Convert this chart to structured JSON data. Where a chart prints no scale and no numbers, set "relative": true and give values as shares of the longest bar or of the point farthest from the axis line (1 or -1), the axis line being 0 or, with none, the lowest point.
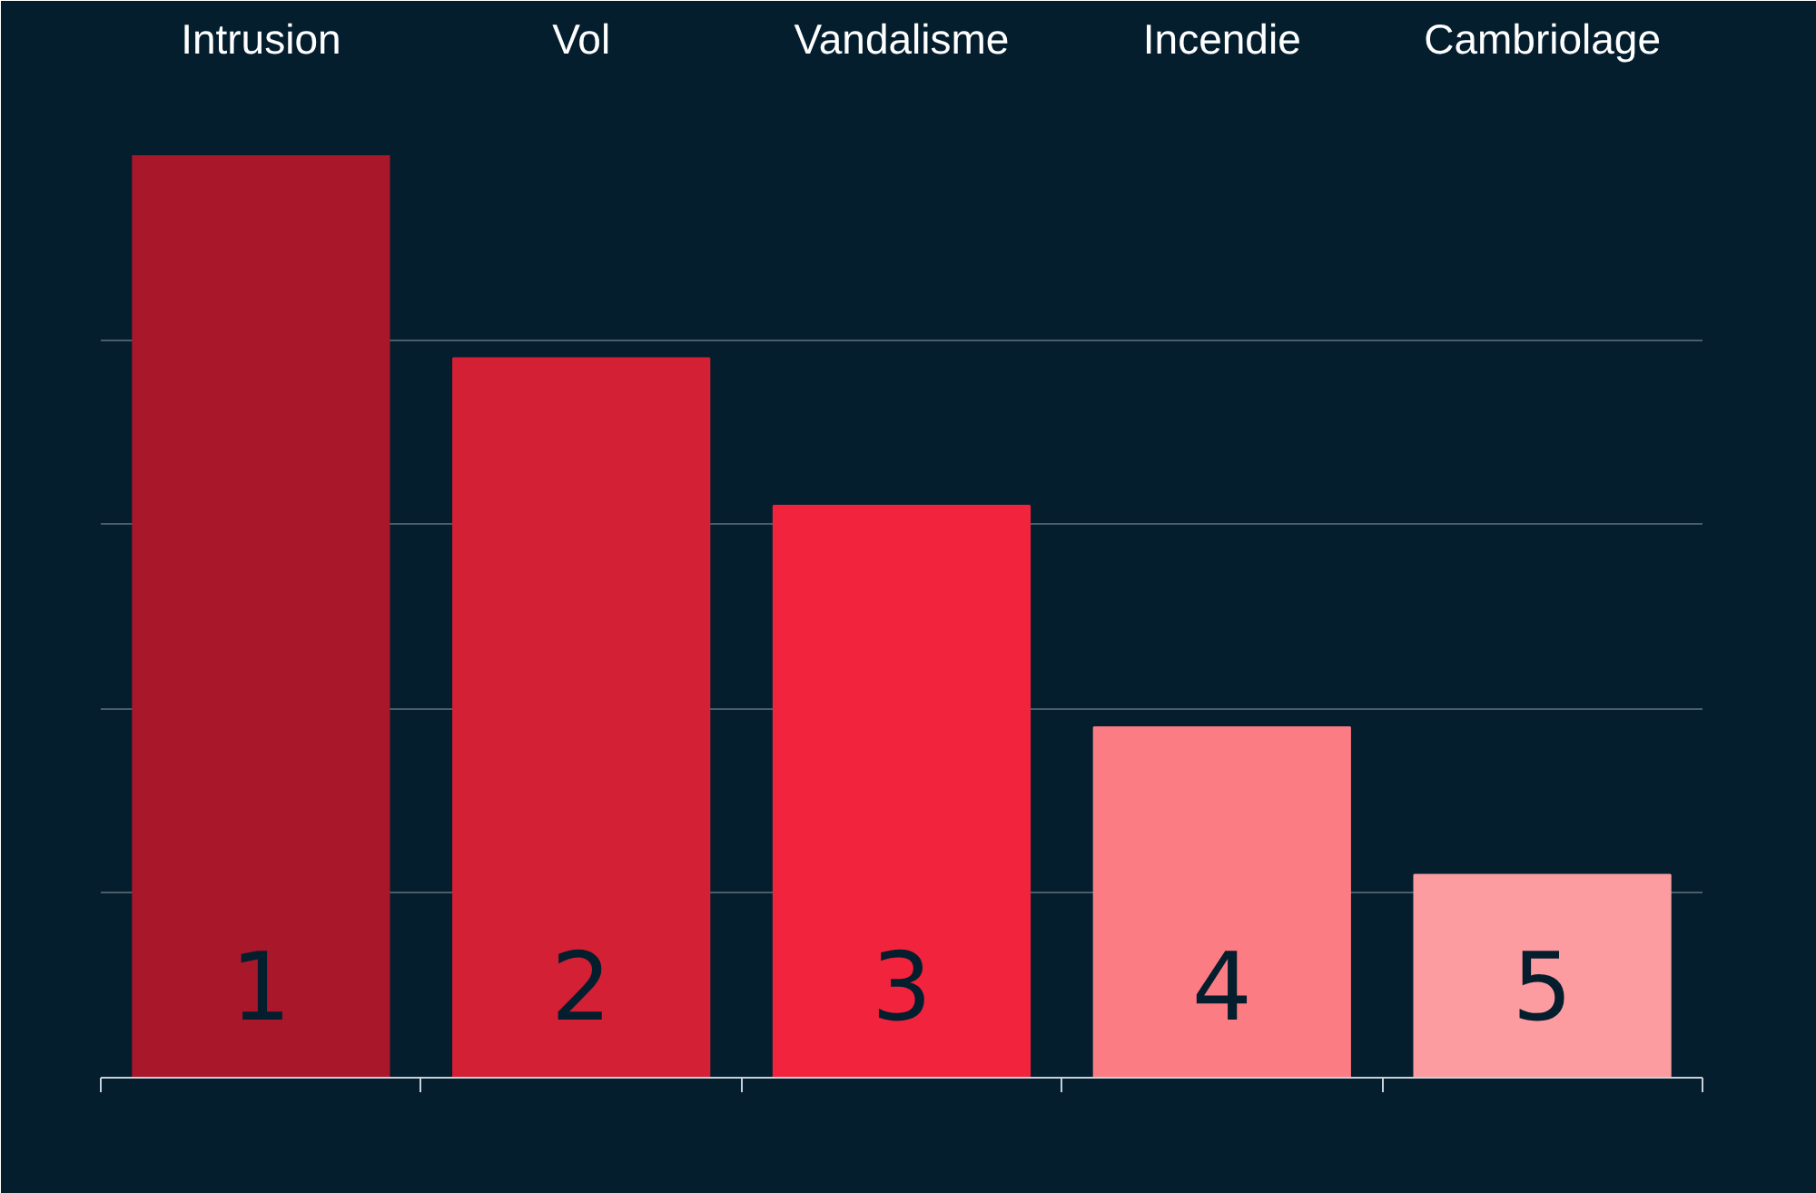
{
  "chart_data": {
    "type": "bar",
    "relative": true,
    "grid": "y",
    "categories": [
      "Intrusion",
      "Vol",
      "Vandalisme",
      "Incendie",
      "Cambriolage"
    ],
    "values": [
      1,
      0.78,
      0.62,
      0.38,
      0.22
    ],
    "colors": [
      "#a8172a",
      "#d42035",
      "#f2243d",
      "#fc7c84",
      "#fd9ca0"
    ],
    "annotations": [
      "1",
      "2",
      "3",
      "4",
      "5"
    ]
  }
}
